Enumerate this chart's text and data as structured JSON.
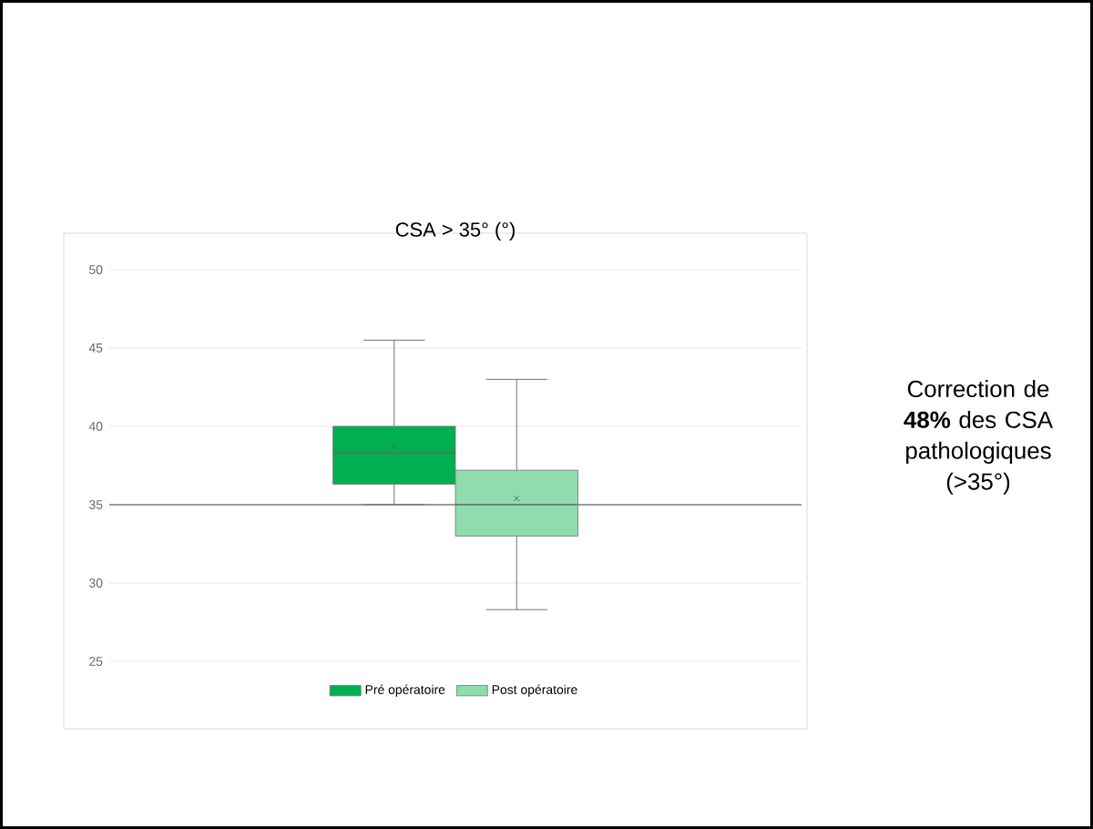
{
  "chart_data": {
    "type": "box",
    "title": "CSA > 35° (°)",
    "categories": [
      null
    ],
    "series": [
      {
        "name": "Pré opératoire",
        "color": "#00b050",
        "boxes": [
          {
            "low": 35,
            "q1": 36.3,
            "median": 38.3,
            "q3": 40,
            "high": 45.5,
            "mean": 38.7
          }
        ]
      },
      {
        "name": "Post opératoire",
        "color": "#8fdcae",
        "boxes": [
          {
            "low": 28.3,
            "q1": 33,
            "median": 35,
            "q3": 37.2,
            "high": 43,
            "mean": 35.4
          }
        ]
      }
    ],
    "ylim": [
      25,
      50
    ],
    "yticks": [
      25,
      30,
      35,
      40,
      45,
      50
    ],
    "grid": "y",
    "legend": "bottom",
    "ref_lines": [
      {
        "axis": "y",
        "value": 35,
        "color": "#404040"
      }
    ],
    "annotations": [
      "Correction de **48%** des CSA pathologiques (>35°)"
    ]
  }
}
